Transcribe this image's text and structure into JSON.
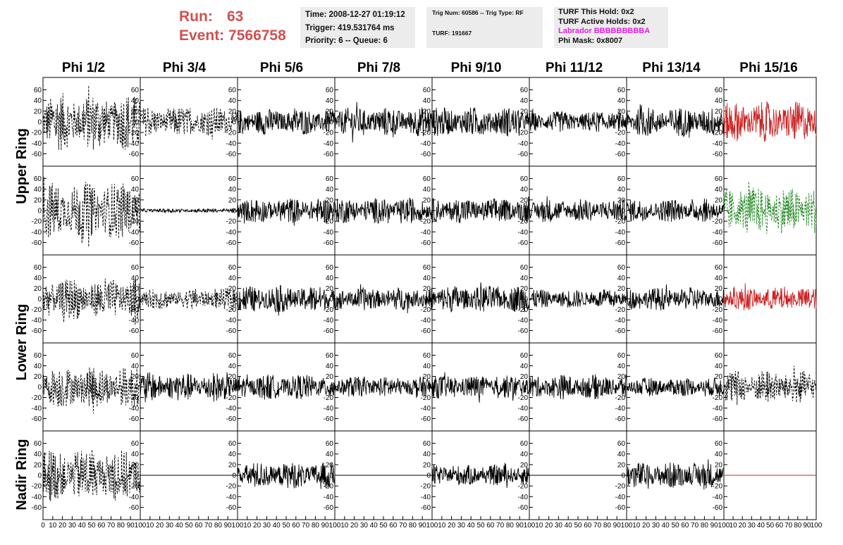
{
  "header": {
    "run_label": "Run:",
    "run_value": "63",
    "event_label": "Event:",
    "event_value": "7566758"
  },
  "info_box_1": {
    "time": "Time: 2008-12-27 01:19:12",
    "trigger": "Trigger: 419.531764 ms",
    "priority": "Priority: 6 -- Queue: 6"
  },
  "info_box_2": {
    "trig": "Trig Num: 60586 -- Trig Type: RF",
    "turf": "TURF: 191667"
  },
  "info_box_3": {
    "hold": "TURF This Hold: 0x2",
    "active": "TURF Active Holds: 0x2",
    "labrador": "Labrador BBBBBBBBBA",
    "phimask": "Phi Mask: 0x8007"
  },
  "columns": [
    "Phi 1/2",
    "Phi 3/4",
    "Phi 5/6",
    "Phi 7/8",
    "Phi 9/10",
    "Phi 11/12",
    "Phi 13/14",
    "Phi 15/16"
  ],
  "rows": [
    "Upper Ring",
    "Lower Ring",
    "Nadir Ring"
  ],
  "colors": {
    "run_text": "#d05050",
    "labrador": "#e020e0",
    "trace_red": "#cc2222",
    "trace_green": "#228822",
    "trace_black": "#000000"
  },
  "chart_data": {
    "type": "line",
    "title": "",
    "xlabel": "",
    "ylabel": "",
    "xlim": [
      0,
      100
    ],
    "ylim": [
      -70,
      70
    ],
    "y_ticks": [
      -60,
      -40,
      -20,
      0,
      20,
      40,
      60
    ],
    "x_tick_labels_first": [
      "0",
      "10",
      "20",
      "30",
      "40",
      "50",
      "60",
      "70",
      "80",
      "90",
      "100"
    ],
    "x_tick_labels": [
      "10",
      "20",
      "30",
      "40",
      "50",
      "60",
      "70",
      "80",
      "90",
      "100"
    ],
    "grid": false,
    "legend": "none",
    "panels": [
      [
        {
          "style": "dashed",
          "color": "#000000",
          "amp": 55
        },
        {
          "style": "dashed",
          "color": "#000000",
          "amp": 28
        },
        {
          "style": "solid",
          "color": "#000000",
          "amp": 25
        },
        {
          "style": "solid",
          "color": "#000000",
          "amp": 28
        },
        {
          "style": "solid",
          "color": "#000000",
          "amp": 28
        },
        {
          "style": "solid",
          "color": "#000000",
          "amp": 20
        },
        {
          "style": "solid",
          "color": "#000000",
          "amp": 28
        },
        {
          "style": "solid",
          "color": "#cc2222",
          "amp": 38
        }
      ],
      [
        {
          "style": "dashed",
          "color": "#000000",
          "amp": 55
        },
        {
          "style": "solid",
          "color": "#000000",
          "amp": 4
        },
        {
          "style": "solid",
          "color": "#000000",
          "amp": 24
        },
        {
          "style": "solid",
          "color": "#000000",
          "amp": 24
        },
        {
          "style": "solid",
          "color": "#000000",
          "amp": 24
        },
        {
          "style": "solid",
          "color": "#000000",
          "amp": 22
        },
        {
          "style": "solid",
          "color": "#000000",
          "amp": 22
        },
        {
          "style": "dashed",
          "color": "#228822",
          "amp": 45
        }
      ],
      [
        {
          "style": "dashed",
          "color": "#000000",
          "amp": 40
        },
        {
          "style": "dashed",
          "color": "#000000",
          "amp": 20
        },
        {
          "style": "solid",
          "color": "#000000",
          "amp": 26
        },
        {
          "style": "solid",
          "color": "#000000",
          "amp": 22
        },
        {
          "style": "solid",
          "color": "#000000",
          "amp": 26
        },
        {
          "style": "solid",
          "color": "#000000",
          "amp": 18
        },
        {
          "style": "solid",
          "color": "#000000",
          "amp": 22
        },
        {
          "style": "solid",
          "color": "#cc2222",
          "amp": 22
        }
      ],
      [
        {
          "style": "dashed",
          "color": "#000000",
          "amp": 40
        },
        {
          "style": "solid",
          "color": "#000000",
          "amp": 28
        },
        {
          "style": "solid",
          "color": "#000000",
          "amp": 24
        },
        {
          "style": "solid",
          "color": "#000000",
          "amp": 20
        },
        {
          "style": "solid",
          "color": "#000000",
          "amp": 22
        },
        {
          "style": "solid",
          "color": "#000000",
          "amp": 24
        },
        {
          "style": "solid",
          "color": "#000000",
          "amp": 18
        },
        {
          "style": "dashed",
          "color": "#000000",
          "amp": 32
        }
      ],
      [
        {
          "style": "dashed",
          "color": "#000000",
          "amp": 50
        },
        {
          "style": "flat",
          "color": "#000000",
          "amp": 0
        },
        {
          "style": "solid",
          "color": "#000000",
          "amp": 25
        },
        {
          "style": "flat",
          "color": "#000000",
          "amp": 0
        },
        {
          "style": "solid",
          "color": "#000000",
          "amp": 20
        },
        {
          "style": "flat",
          "color": "#000000",
          "amp": 0
        },
        {
          "style": "solid",
          "color": "#000000",
          "amp": 25
        },
        {
          "style": "flat",
          "color": "#cc2222",
          "amp": 0
        }
      ]
    ]
  }
}
